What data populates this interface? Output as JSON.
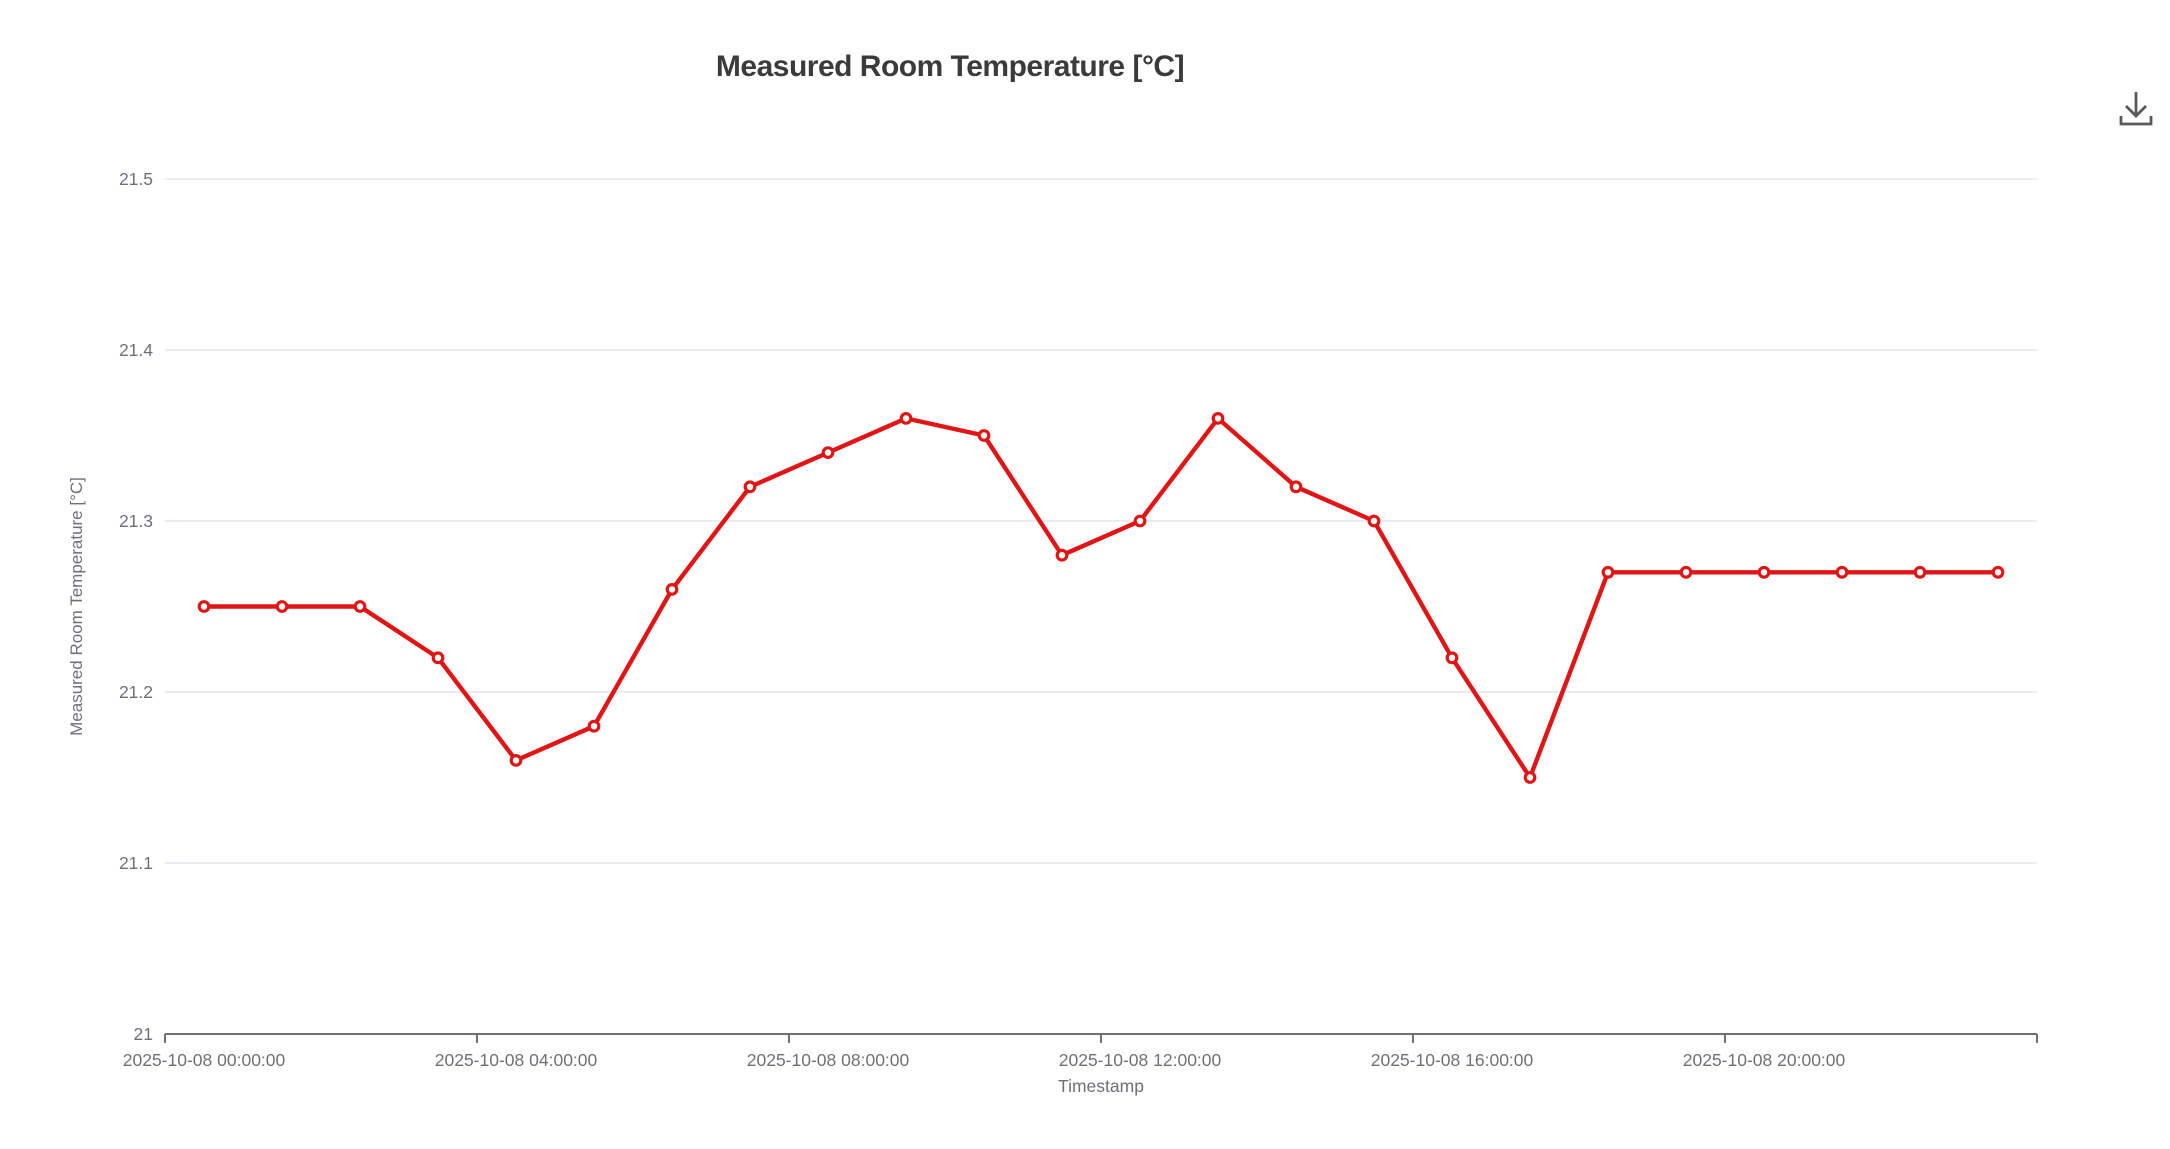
{
  "header": {
    "title": "Measured Room Temperature [°C]"
  },
  "toolbox": {
    "save_as_image_tooltip": "Save as image"
  },
  "chart_data": {
    "type": "line",
    "title": "Measured Room Temperature [°C]",
    "xlabel": "Timestamp",
    "ylabel": "Measured Room Temperature [°C]",
    "ylim": [
      21,
      21.5
    ],
    "y_ticks": [
      "21",
      "21.1",
      "21.2",
      "21.3",
      "21.4",
      "21.5"
    ],
    "x": [
      "2025-10-08 00:00:00",
      "2025-10-08 01:00:00",
      "2025-10-08 02:00:00",
      "2025-10-08 03:00:00",
      "2025-10-08 04:00:00",
      "2025-10-08 05:00:00",
      "2025-10-08 06:00:00",
      "2025-10-08 07:00:00",
      "2025-10-08 08:00:00",
      "2025-10-08 09:00:00",
      "2025-10-08 10:00:00",
      "2025-10-08 11:00:00",
      "2025-10-08 12:00:00",
      "2025-10-08 13:00:00",
      "2025-10-08 14:00:00",
      "2025-10-08 15:00:00",
      "2025-10-08 16:00:00",
      "2025-10-08 17:00:00",
      "2025-10-08 18:00:00",
      "2025-10-08 19:00:00",
      "2025-10-08 20:00:00",
      "2025-10-08 21:00:00",
      "2025-10-08 22:00:00",
      "2025-10-08 23:00:00"
    ],
    "x_tick_labels": [
      "2025-10-08 00:00:00",
      "2025-10-08 04:00:00",
      "2025-10-08 08:00:00",
      "2025-10-08 12:00:00",
      "2025-10-08 16:00:00",
      "2025-10-08 20:00:00"
    ],
    "series": [
      {
        "name": "Measured Room Temperature [°C]",
        "color": "#e01515",
        "marker": "open-circle",
        "values": [
          21.25,
          21.25,
          21.25,
          21.22,
          21.16,
          21.18,
          21.26,
          21.32,
          21.34,
          21.36,
          21.35,
          21.28,
          21.3,
          21.36,
          21.32,
          21.3,
          21.22,
          21.15,
          21.27,
          21.27,
          21.27,
          21.27,
          21.27,
          21.27
        ]
      }
    ],
    "layout_hints": {
      "grid": "horizontal-only",
      "grid_color": "#e2e6ef",
      "axis_color": "#6e7079",
      "label_color": "#6e7079",
      "title_color": "#3b3b3b",
      "legend": "none",
      "x_label_every_n_points": 4
    }
  }
}
